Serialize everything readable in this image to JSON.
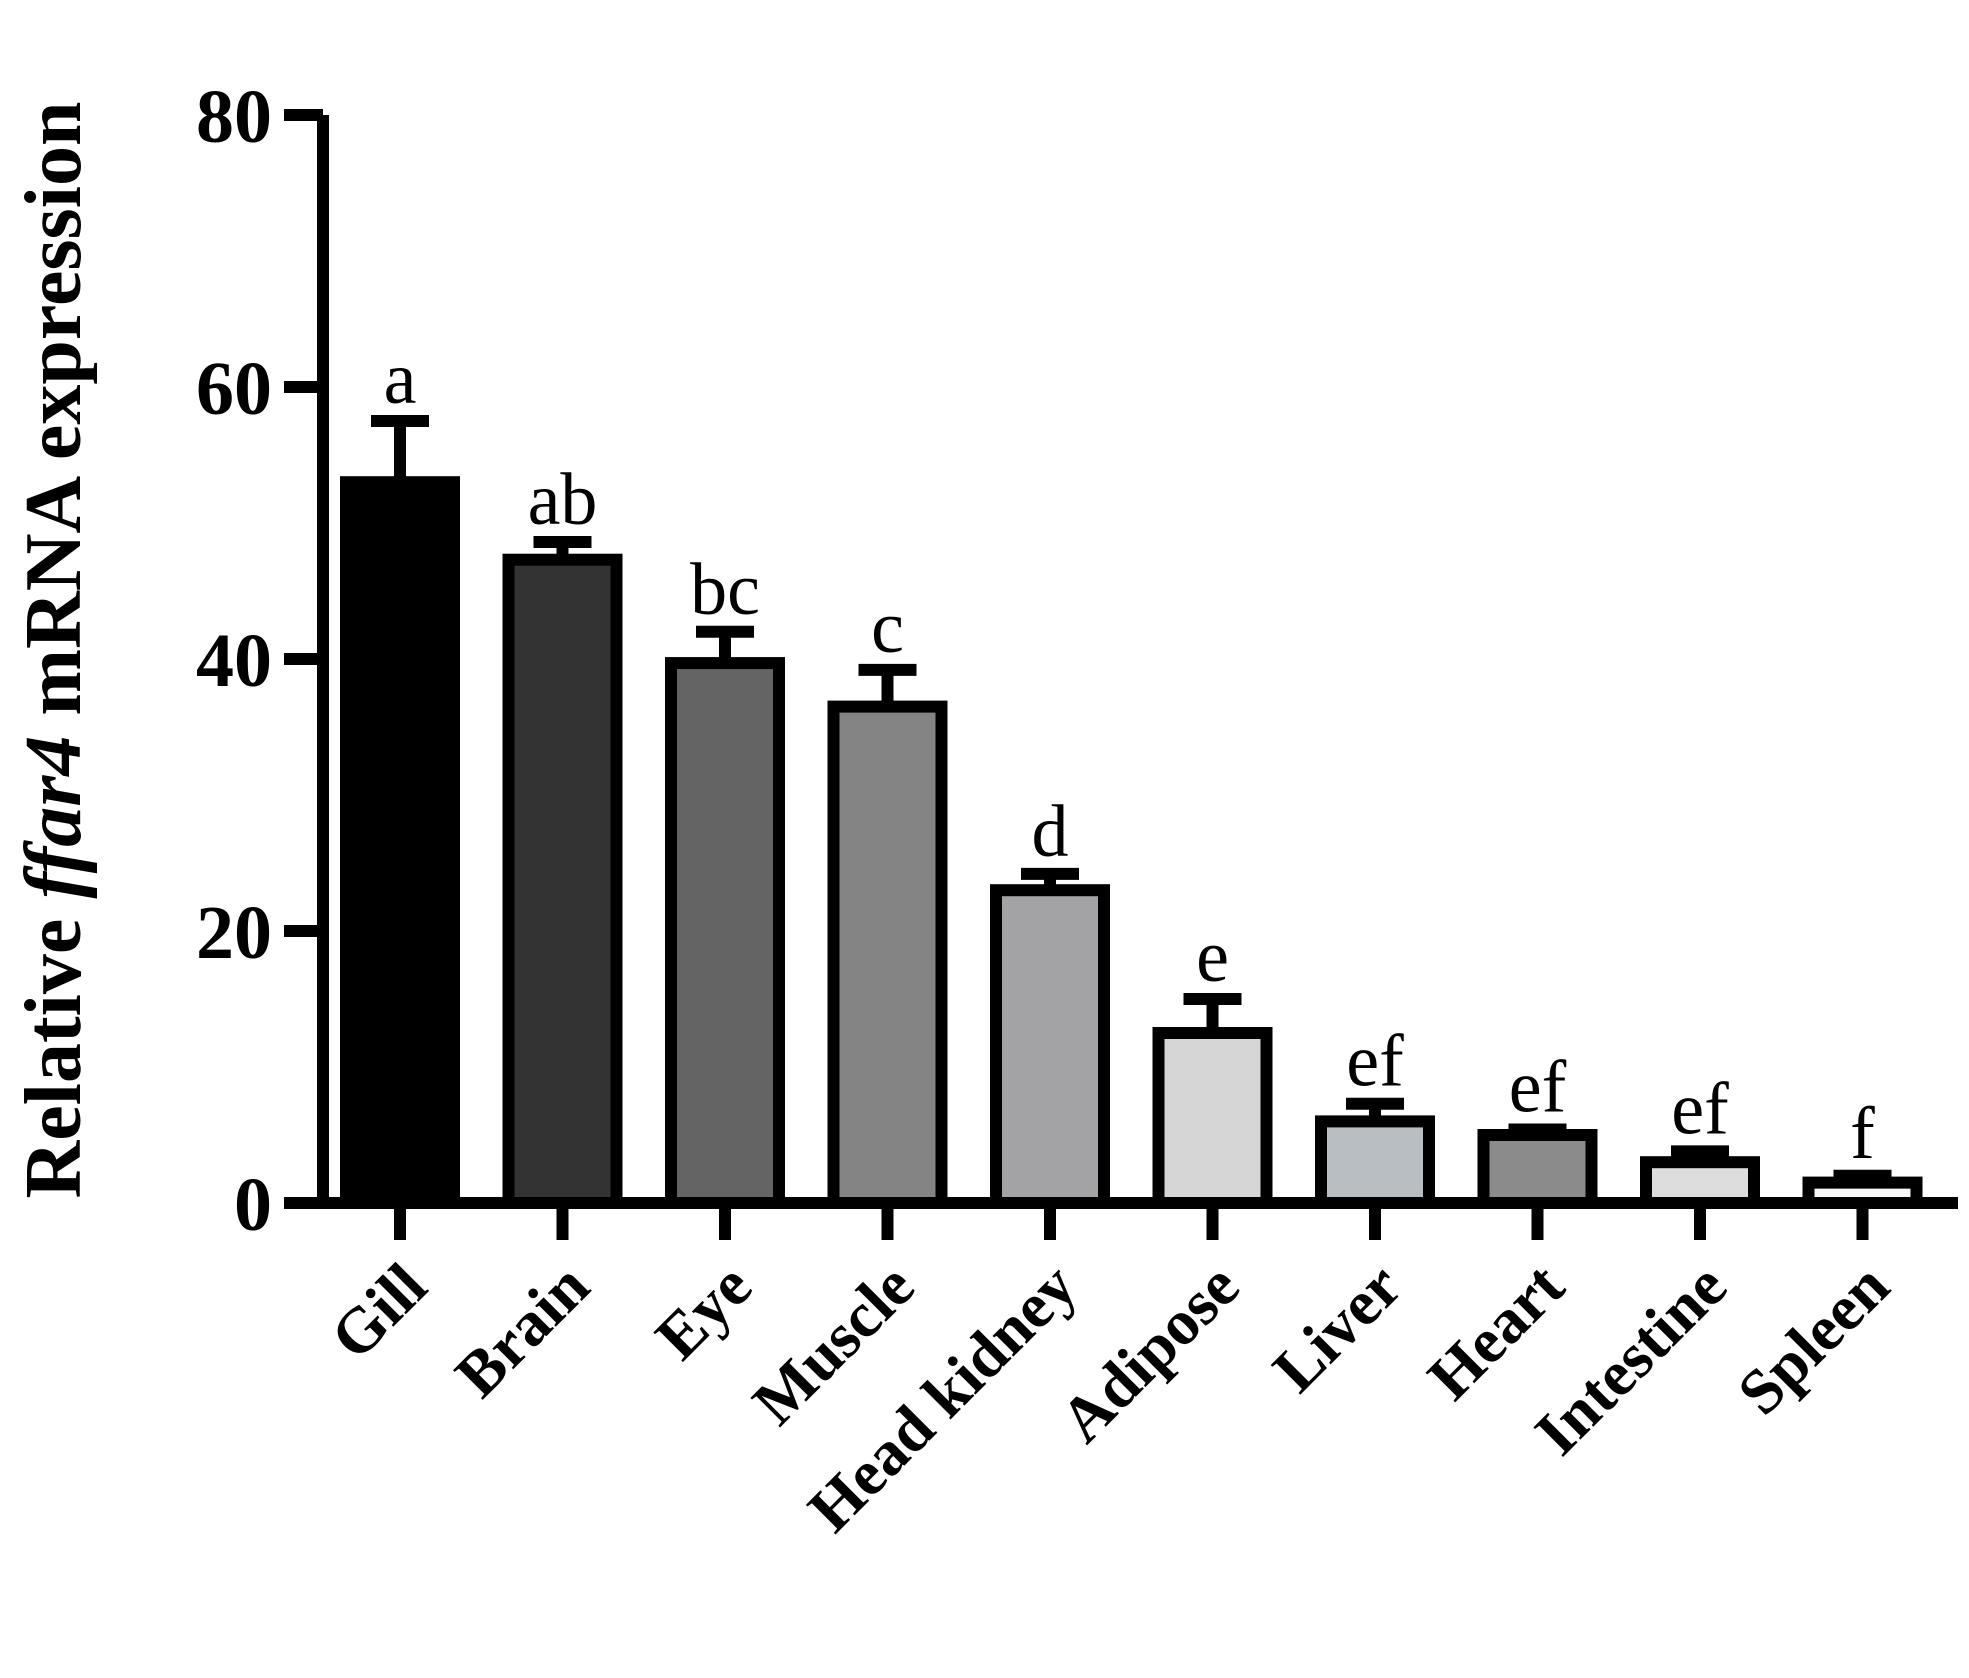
{
  "chart_data": {
    "type": "bar",
    "title": "",
    "xlabel": "",
    "ylabel_parts": [
      "Relative ",
      "ffar4",
      " mRNA expression"
    ],
    "ylim": [
      0,
      80
    ],
    "yticks": [
      0,
      20,
      40,
      60,
      80
    ],
    "grid": false,
    "categories": [
      "Gill",
      "Brain",
      "Eye",
      "Muscle",
      "Head kidney",
      "Adipose",
      "Liver",
      "Heart",
      "Intestine",
      "Spleen"
    ],
    "values": [
      53,
      47.3,
      39.7,
      36.5,
      23,
      12.5,
      6,
      5,
      3,
      1.5
    ],
    "errors": [
      4.5,
      1.3,
      2.3,
      2.7,
      1.2,
      2.5,
      1.3,
      0.4,
      0.8,
      0.5
    ],
    "significance": [
      "a",
      "ab",
      "bc",
      "c",
      "d",
      "e",
      "ef",
      "ef",
      "ef",
      "f"
    ],
    "colors": [
      "#000000",
      "#333333",
      "#646464",
      "#848484",
      "#a3a3a6",
      "#d6d6d6",
      "#b9bec2",
      "#8b8b8b",
      "#dddddd",
      "#f8f8f8"
    ]
  }
}
